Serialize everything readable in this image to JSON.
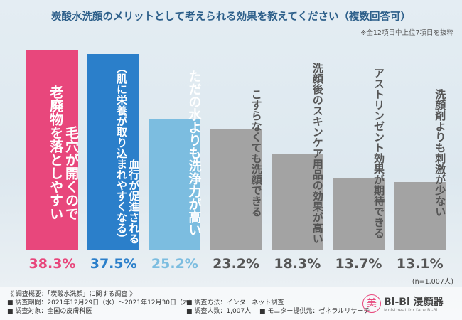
{
  "chart_data": {
    "type": "bar",
    "title": "炭酸水洗顔のメリットとして考えられる効果を教えてください（複数回答可）",
    "subtitle": "※全12項目中上位7項目を抜粋",
    "categories": [
      "毛穴が開くので\n老廃物を落としやすい",
      "血行が促進される\n（肌に栄養が取り込まれやすくなる）",
      "ただの水よりも洗浄力が高い",
      "こすらなくても洗顔できる",
      "洗顔後のスキンケア用品の効果が高い",
      "アストリンゼント効果が期待できる",
      "洗顔剤よりも刺激が少ない"
    ],
    "values": [
      38.3,
      37.5,
      25.2,
      23.2,
      18.3,
      13.7,
      13.1
    ],
    "value_labels": [
      "38.3%",
      "37.5%",
      "25.2%",
      "23.2%",
      "18.3%",
      "13.7%",
      "13.1%"
    ],
    "colors": [
      "#e8477c",
      "#2b7fca",
      "#7cbde0",
      "#a3a3a3",
      "#a3a3a3",
      "#a3a3a3",
      "#a3a3a3"
    ],
    "note": "(n=1,007人)"
  },
  "footer": {
    "lines": [
      "《 調査概要：「炭酸水洗顔」に関する調査 》",
      "■ 調査期間：2021年12月29日（水）～2021年12月30日（木）",
      "■ 調査対象：全国の皮膚科医",
      "■ 調査方法：インターネット調査",
      "■ 調査人数：1,007人",
      "■ モニター提供元：ゼネラルリサーチ"
    ]
  },
  "logo": {
    "mark": "美",
    "name": "Bi-Bi 浸顔器",
    "tagline": "Moistbeat for face Bi-Bi"
  }
}
